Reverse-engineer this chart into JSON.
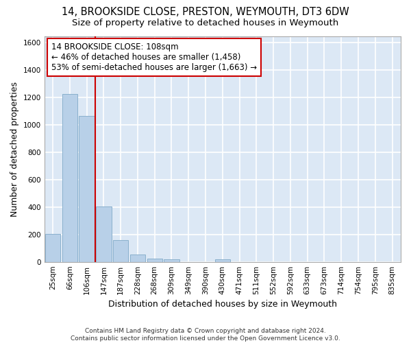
{
  "title_line1": "14, BROOKSIDE CLOSE, PRESTON, WEYMOUTH, DT3 6DW",
  "title_line2": "Size of property relative to detached houses in Weymouth",
  "xlabel": "Distribution of detached houses by size in Weymouth",
  "ylabel": "Number of detached properties",
  "categories": [
    "25sqm",
    "66sqm",
    "106sqm",
    "147sqm",
    "187sqm",
    "228sqm",
    "268sqm",
    "309sqm",
    "349sqm",
    "390sqm",
    "430sqm",
    "471sqm",
    "511sqm",
    "552sqm",
    "592sqm",
    "633sqm",
    "673sqm",
    "714sqm",
    "754sqm",
    "795sqm",
    "835sqm"
  ],
  "values": [
    205,
    1225,
    1065,
    405,
    160,
    52,
    25,
    20,
    0,
    0,
    20,
    0,
    0,
    0,
    0,
    0,
    0,
    0,
    0,
    0,
    0
  ],
  "bar_color": "#b8d0e8",
  "bar_edge_color": "#7aа0c0",
  "annotation_text": "14 BROOKSIDE CLOSE: 108sqm\n← 46% of detached houses are smaller (1,458)\n53% of semi-detached houses are larger (1,663) →",
  "annotation_box_color": "#ffffff",
  "annotation_box_edge_color": "#cc0000",
  "vline_color": "#cc0000",
  "vline_x": 2.5,
  "ylim": [
    0,
    1650
  ],
  "yticks": [
    0,
    200,
    400,
    600,
    800,
    1000,
    1200,
    1400,
    1600
  ],
  "background_color": "#dce8f5",
  "grid_color": "#ffffff",
  "fig_background": "#ffffff",
  "footer_text": "Contains HM Land Registry data © Crown copyright and database right 2024.\nContains public sector information licensed under the Open Government Licence v3.0.",
  "title_fontsize": 10.5,
  "subtitle_fontsize": 9.5,
  "tick_fontsize": 7.5,
  "label_fontsize": 9,
  "annotation_fontsize": 8.5
}
